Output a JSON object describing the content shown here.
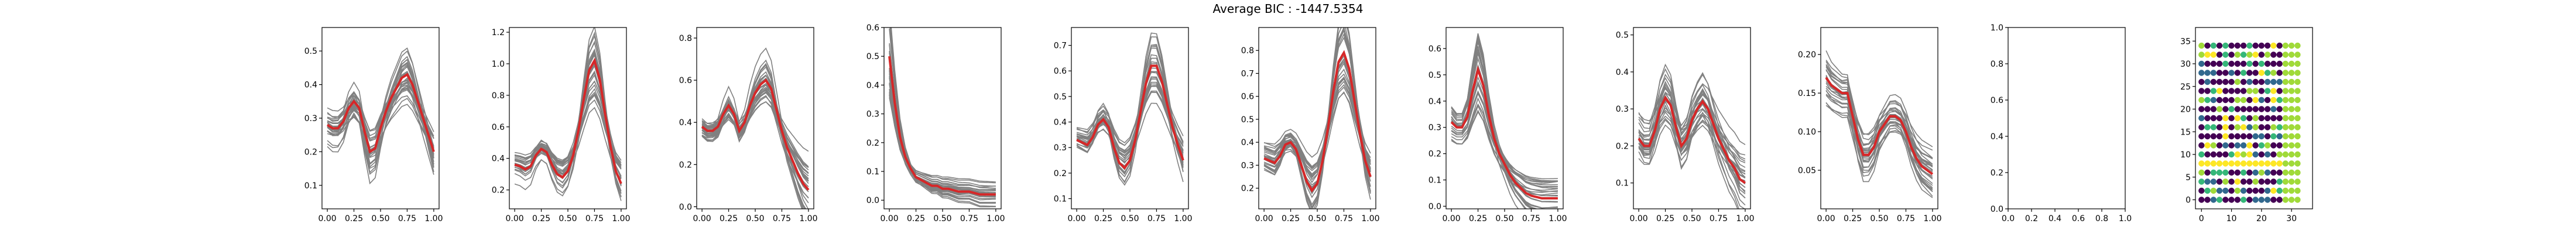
{
  "title": "Average BIC : -1447.5354",
  "colors": {
    "series": "#808080",
    "mean": "#d62728",
    "axis": "#000000"
  },
  "chart_data": [
    {
      "type": "line",
      "xticks": [
        "0.00",
        "0.25",
        "0.50",
        "0.75",
        "1.00"
      ],
      "yticks": [
        "0.1",
        "0.2",
        "0.3",
        "0.4",
        "0.5"
      ],
      "ytick_values": [
        0.1,
        0.2,
        0.3,
        0.4,
        0.5
      ],
      "xlim": [
        -0.05,
        1.05
      ],
      "ylim": [
        0.03,
        0.57
      ],
      "mean": {
        "x": [
          0,
          0.05,
          0.1,
          0.15,
          0.2,
          0.25,
          0.3,
          0.35,
          0.4,
          0.45,
          0.5,
          0.55,
          0.6,
          0.65,
          0.7,
          0.75,
          0.8,
          0.85,
          0.9,
          0.95,
          1.0
        ],
        "y": [
          0.28,
          0.27,
          0.27,
          0.29,
          0.33,
          0.35,
          0.33,
          0.26,
          0.2,
          0.21,
          0.27,
          0.32,
          0.36,
          0.39,
          0.42,
          0.43,
          0.4,
          0.35,
          0.3,
          0.25,
          0.2
        ]
      },
      "spread": 0.11
    },
    {
      "type": "line",
      "xticks": [
        "0.00",
        "0.25",
        "0.50",
        "0.75",
        "1.00"
      ],
      "yticks": [
        "0.2",
        "0.4",
        "0.6",
        "0.8",
        "1.0",
        "1.2"
      ],
      "ytick_values": [
        0.2,
        0.4,
        0.6,
        0.8,
        1.0,
        1.2
      ],
      "xlim": [
        -0.05,
        1.05
      ],
      "ylim": [
        0.08,
        1.23
      ],
      "mean": {
        "x": [
          0,
          0.05,
          0.1,
          0.15,
          0.2,
          0.25,
          0.3,
          0.35,
          0.4,
          0.45,
          0.5,
          0.55,
          0.6,
          0.65,
          0.7,
          0.75,
          0.8,
          0.85,
          0.9,
          0.95,
          1.0
        ],
        "y": [
          0.36,
          0.35,
          0.33,
          0.35,
          0.42,
          0.46,
          0.44,
          0.36,
          0.3,
          0.28,
          0.32,
          0.42,
          0.58,
          0.78,
          0.96,
          1.02,
          0.9,
          0.68,
          0.48,
          0.32,
          0.24
        ]
      },
      "spread": 0.16
    },
    {
      "type": "line",
      "xticks": [
        "0.00",
        "0.25",
        "0.50",
        "0.75",
        "1.00"
      ],
      "yticks": [
        "0.0",
        "0.2",
        "0.4",
        "0.6",
        "0.8"
      ],
      "ytick_values": [
        0.0,
        0.2,
        0.4,
        0.6,
        0.8
      ],
      "xlim": [
        -0.05,
        1.05
      ],
      "ylim": [
        -0.01,
        0.85
      ],
      "mean": {
        "x": [
          0,
          0.05,
          0.1,
          0.15,
          0.2,
          0.25,
          0.3,
          0.35,
          0.4,
          0.45,
          0.5,
          0.55,
          0.6,
          0.65,
          0.7,
          0.75,
          0.8,
          0.85,
          0.9,
          0.95,
          1.0
        ],
        "y": [
          0.38,
          0.36,
          0.36,
          0.38,
          0.44,
          0.48,
          0.44,
          0.36,
          0.4,
          0.48,
          0.54,
          0.58,
          0.6,
          0.56,
          0.46,
          0.36,
          0.28,
          0.22,
          0.16,
          0.11,
          0.08
        ]
      },
      "spread": 0.13
    },
    {
      "type": "line",
      "xticks": [
        "0.00",
        "0.25",
        "0.50",
        "0.75",
        "1.00"
      ],
      "yticks": [
        "0.0",
        "0.1",
        "0.2",
        "0.3",
        "0.4",
        "0.5",
        "0.6"
      ],
      "ytick_values": [
        0.0,
        0.1,
        0.2,
        0.3,
        0.4,
        0.5,
        0.6
      ],
      "xlim": [
        -0.05,
        1.05
      ],
      "ylim": [
        -0.03,
        0.6
      ],
      "mean": {
        "x": [
          0,
          0.05,
          0.1,
          0.15,
          0.2,
          0.25,
          0.3,
          0.35,
          0.4,
          0.45,
          0.5,
          0.55,
          0.6,
          0.65,
          0.7,
          0.75,
          0.8,
          0.85,
          0.9,
          0.95,
          1.0
        ],
        "y": [
          0.5,
          0.34,
          0.22,
          0.15,
          0.11,
          0.08,
          0.07,
          0.06,
          0.05,
          0.05,
          0.04,
          0.04,
          0.035,
          0.03,
          0.03,
          0.03,
          0.025,
          0.02,
          0.02,
          0.02,
          0.02
        ]
      },
      "spread": 0.05
    },
    {
      "type": "line",
      "xticks": [
        "0.00",
        "0.25",
        "0.50",
        "0.75",
        "1.00"
      ],
      "yticks": [
        "0.1",
        "0.2",
        "0.3",
        "0.4",
        "0.5",
        "0.6",
        "0.7"
      ],
      "ytick_values": [
        0.1,
        0.2,
        0.3,
        0.4,
        0.5,
        0.6,
        0.7
      ],
      "xlim": [
        -0.05,
        1.05
      ],
      "ylim": [
        0.06,
        0.77
      ],
      "mean": {
        "x": [
          0,
          0.05,
          0.1,
          0.15,
          0.2,
          0.25,
          0.3,
          0.35,
          0.4,
          0.45,
          0.5,
          0.55,
          0.6,
          0.65,
          0.7,
          0.75,
          0.8,
          0.85,
          0.9,
          0.95,
          1.0
        ],
        "y": [
          0.33,
          0.32,
          0.31,
          0.34,
          0.39,
          0.41,
          0.38,
          0.3,
          0.24,
          0.22,
          0.25,
          0.33,
          0.44,
          0.55,
          0.62,
          0.62,
          0.56,
          0.47,
          0.38,
          0.31,
          0.25
        ]
      },
      "spread": 0.11
    },
    {
      "type": "line",
      "xticks": [
        "0.00",
        "0.25",
        "0.50",
        "0.75",
        "1.00"
      ],
      "yticks": [
        "0.2",
        "0.3",
        "0.4",
        "0.5",
        "0.6",
        "0.7",
        "0.8"
      ],
      "ytick_values": [
        0.2,
        0.3,
        0.4,
        0.5,
        0.6,
        0.7,
        0.8
      ],
      "xlim": [
        -0.05,
        1.05
      ],
      "ylim": [
        0.11,
        0.9
      ],
      "mean": {
        "x": [
          0,
          0.05,
          0.1,
          0.15,
          0.2,
          0.25,
          0.3,
          0.35,
          0.4,
          0.45,
          0.5,
          0.55,
          0.6,
          0.65,
          0.7,
          0.75,
          0.8,
          0.85,
          0.9,
          0.95,
          1.0
        ],
        "y": [
          0.33,
          0.32,
          0.31,
          0.34,
          0.39,
          0.4,
          0.37,
          0.3,
          0.23,
          0.19,
          0.22,
          0.32,
          0.46,
          0.62,
          0.75,
          0.79,
          0.72,
          0.58,
          0.44,
          0.32,
          0.25
        ]
      },
      "spread": 0.12
    },
    {
      "type": "line",
      "xticks": [
        "0.00",
        "0.25",
        "0.50",
        "0.75",
        "1.00"
      ],
      "yticks": [
        "0.0",
        "0.1",
        "0.2",
        "0.3",
        "0.4",
        "0.5",
        "0.6"
      ],
      "ytick_values": [
        0.0,
        0.1,
        0.2,
        0.3,
        0.4,
        0.5,
        0.6
      ],
      "xlim": [
        -0.05,
        1.05
      ],
      "ylim": [
        -0.01,
        0.68
      ],
      "mean": {
        "x": [
          0,
          0.05,
          0.1,
          0.15,
          0.2,
          0.25,
          0.3,
          0.35,
          0.4,
          0.45,
          0.5,
          0.55,
          0.6,
          0.65,
          0.7,
          0.75,
          0.8,
          0.85,
          0.9,
          0.95,
          1.0
        ],
        "y": [
          0.32,
          0.3,
          0.3,
          0.34,
          0.44,
          0.52,
          0.46,
          0.35,
          0.26,
          0.2,
          0.16,
          0.12,
          0.09,
          0.07,
          0.05,
          0.04,
          0.035,
          0.03,
          0.03,
          0.03,
          0.03
        ]
      },
      "spread": 0.1
    },
    {
      "type": "line",
      "xticks": [
        "0.00",
        "0.25",
        "0.50",
        "0.75",
        "1.00"
      ],
      "yticks": [
        "0.1",
        "0.2",
        "0.3",
        "0.4",
        "0.5"
      ],
      "ytick_values": [
        0.1,
        0.2,
        0.3,
        0.4,
        0.5
      ],
      "xlim": [
        -0.05,
        1.05
      ],
      "ylim": [
        0.03,
        0.52
      ],
      "mean": {
        "x": [
          0,
          0.05,
          0.1,
          0.15,
          0.2,
          0.25,
          0.3,
          0.35,
          0.4,
          0.45,
          0.5,
          0.55,
          0.6,
          0.65,
          0.7,
          0.75,
          0.8,
          0.85,
          0.9,
          0.95,
          1.0
        ],
        "y": [
          0.22,
          0.2,
          0.2,
          0.24,
          0.3,
          0.33,
          0.31,
          0.25,
          0.2,
          0.22,
          0.27,
          0.3,
          0.32,
          0.3,
          0.26,
          0.22,
          0.19,
          0.16,
          0.14,
          0.11,
          0.1
        ]
      },
      "spread": 0.16
    },
    {
      "type": "line",
      "xticks": [
        "0.00",
        "0.25",
        "0.50",
        "0.75",
        "1.00"
      ],
      "yticks": [
        "0.05",
        "0.10",
        "0.15",
        "0.20"
      ],
      "ytick_values": [
        0.05,
        0.1,
        0.15,
        0.2
      ],
      "xlim": [
        -0.05,
        1.05
      ],
      "ylim": [
        0.0,
        0.235
      ],
      "mean": {
        "x": [
          0,
          0.05,
          0.1,
          0.15,
          0.2,
          0.25,
          0.3,
          0.35,
          0.4,
          0.45,
          0.5,
          0.55,
          0.6,
          0.65,
          0.7,
          0.75,
          0.8,
          0.85,
          0.9,
          0.95,
          1.0
        ],
        "y": [
          0.17,
          0.16,
          0.155,
          0.15,
          0.15,
          0.12,
          0.09,
          0.07,
          0.07,
          0.08,
          0.1,
          0.11,
          0.12,
          0.12,
          0.115,
          0.1,
          0.08,
          0.065,
          0.055,
          0.05,
          0.045
        ]
      },
      "spread": 0.06
    },
    {
      "type": "line",
      "empty": true,
      "xticks": [
        "0.0",
        "0.2",
        "0.4",
        "0.6",
        "0.8",
        "1.0"
      ],
      "yticks": [
        "0.0",
        "0.2",
        "0.4",
        "0.6",
        "0.8",
        "1.0"
      ],
      "ytick_values": [
        0.0,
        0.2,
        0.4,
        0.6,
        0.8,
        1.0
      ],
      "xlim": [
        0,
        1
      ],
      "ylim": [
        0,
        1
      ]
    },
    {
      "type": "scatter",
      "xticks": [
        "0",
        "10",
        "20",
        "30"
      ],
      "xtick_values": [
        0,
        10,
        20,
        30
      ],
      "yticks": [
        "0",
        "5",
        "10",
        "15",
        "20",
        "25",
        "30",
        "35"
      ],
      "ytick_values": [
        0,
        5,
        10,
        15,
        20,
        25,
        30,
        35
      ],
      "xlim": [
        -2,
        37
      ],
      "ylim": [
        -2,
        38
      ],
      "grid": {
        "cols": 17,
        "rows": 18,
        "dx": 2,
        "dy": 2
      },
      "palette": [
        "#440154",
        "#31688e",
        "#35b779",
        "#fde725",
        "#a0da39"
      ]
    }
  ]
}
